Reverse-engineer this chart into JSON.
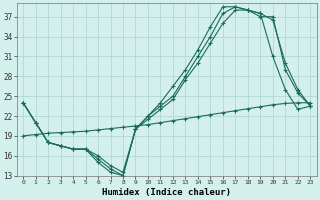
{
  "xlabel": "Humidex (Indice chaleur)",
  "bg_color": "#d4f0ec",
  "grid_color": "#aad4cc",
  "line_color": "#1a6b5a",
  "xlim": [
    -0.5,
    23.5
  ],
  "ylim": [
    13,
    39
  ],
  "yticks": [
    13,
    16,
    19,
    22,
    25,
    28,
    31,
    34,
    37
  ],
  "xticks": [
    0,
    1,
    2,
    3,
    4,
    5,
    6,
    7,
    8,
    9,
    10,
    11,
    12,
    13,
    14,
    15,
    16,
    17,
    18,
    19,
    20,
    21,
    22,
    23
  ],
  "series": [
    {
      "x": [
        0,
        1,
        2,
        3,
        4,
        5,
        6,
        7,
        8,
        9,
        10,
        11,
        12,
        13,
        14,
        15,
        16,
        17,
        18,
        19,
        20,
        21,
        22,
        23
      ],
      "y": [
        24,
        21,
        18,
        17.5,
        17,
        17,
        15,
        13.5,
        13,
        20,
        22,
        24,
        26.5,
        29,
        32,
        35.5,
        38.5,
        38.5,
        38,
        37.5,
        31,
        26,
        23,
        23.5
      ]
    },
    {
      "x": [
        0,
        1,
        2,
        3,
        4,
        5,
        6,
        7,
        8,
        9,
        10,
        11,
        12,
        13,
        14,
        15,
        16,
        17,
        18,
        19,
        20,
        21,
        22,
        23
      ],
      "y": [
        24,
        21,
        18,
        17.5,
        17,
        17,
        15.5,
        14,
        13,
        20,
        22,
        23.5,
        25,
        28,
        31,
        34,
        37.5,
        38.5,
        38,
        37.5,
        36.5,
        30,
        26,
        23.5
      ]
    },
    {
      "x": [
        0,
        1,
        2,
        3,
        4,
        5,
        6,
        7,
        8,
        9,
        10,
        11,
        12,
        13,
        14,
        15,
        16,
        17,
        18,
        19,
        20,
        21,
        22,
        23
      ],
      "y": [
        24,
        21,
        18,
        17.5,
        17,
        17,
        16,
        14.5,
        13.5,
        20,
        21.5,
        23,
        24.5,
        27.5,
        30,
        33,
        36,
        38,
        38,
        37,
        37,
        29,
        25.5,
        23.5
      ]
    },
    {
      "x": [
        0,
        1,
        2,
        3,
        4,
        5,
        6,
        7,
        8,
        9,
        10,
        11,
        12,
        13,
        14,
        15,
        16,
        17,
        18,
        19,
        20,
        21,
        22,
        23
      ],
      "y": [
        19,
        19.2,
        19.4,
        19.5,
        19.6,
        19.7,
        19.9,
        20.1,
        20.3,
        20.5,
        20.7,
        21.0,
        21.3,
        21.6,
        21.9,
        22.2,
        22.5,
        22.8,
        23.1,
        23.4,
        23.7,
        23.9,
        24.0,
        24.0
      ]
    }
  ]
}
